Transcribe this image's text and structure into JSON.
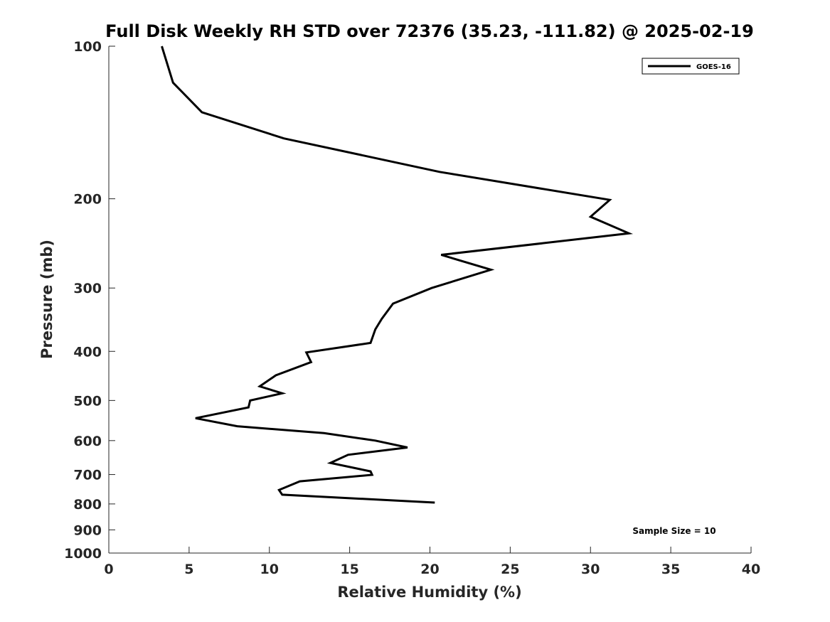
{
  "chart_data": {
    "type": "line",
    "title": "Full Disk Weekly RH STD over 72376 (35.23, -111.82) @ 2025-02-19",
    "xlabel": "Relative Humidity (%)",
    "ylabel": "Pressure (mb)",
    "xlim": [
      0,
      40
    ],
    "ylim": [
      100,
      1000
    ],
    "y_scale": "log",
    "y_reversed": true,
    "grid": false,
    "x_ticks": [
      0,
      5,
      10,
      15,
      20,
      25,
      30,
      35,
      40
    ],
    "y_ticks": [
      100,
      200,
      300,
      400,
      500,
      600,
      700,
      800,
      900,
      1000
    ],
    "legend": {
      "position": "top-right",
      "entries": [
        "GOES-16"
      ]
    },
    "annotations": [
      {
        "text": "Sample Size = 10",
        "position": "bottom-right"
      }
    ],
    "series": [
      {
        "name": "GOES-16",
        "color": "#000000",
        "points": [
          {
            "x": 3.3,
            "y": 100
          },
          {
            "x": 4.0,
            "y": 118
          },
          {
            "x": 5.8,
            "y": 135
          },
          {
            "x": 10.9,
            "y": 152
          },
          {
            "x": 20.6,
            "y": 177
          },
          {
            "x": 31.2,
            "y": 201
          },
          {
            "x": 30.0,
            "y": 217
          },
          {
            "x": 32.4,
            "y": 234
          },
          {
            "x": 20.7,
            "y": 258
          },
          {
            "x": 23.8,
            "y": 276
          },
          {
            "x": 20.1,
            "y": 300
          },
          {
            "x": 17.7,
            "y": 322
          },
          {
            "x": 17.0,
            "y": 345
          },
          {
            "x": 16.6,
            "y": 362
          },
          {
            "x": 16.3,
            "y": 385
          },
          {
            "x": 12.3,
            "y": 402
          },
          {
            "x": 12.6,
            "y": 420
          },
          {
            "x": 10.4,
            "y": 446
          },
          {
            "x": 9.4,
            "y": 469
          },
          {
            "x": 10.8,
            "y": 484
          },
          {
            "x": 8.8,
            "y": 500
          },
          {
            "x": 8.7,
            "y": 516
          },
          {
            "x": 5.4,
            "y": 542
          },
          {
            "x": 8.0,
            "y": 562
          },
          {
            "x": 13.4,
            "y": 580
          },
          {
            "x": 16.6,
            "y": 600
          },
          {
            "x": 18.6,
            "y": 619
          },
          {
            "x": 14.9,
            "y": 640
          },
          {
            "x": 13.8,
            "y": 664
          },
          {
            "x": 16.3,
            "y": 690
          },
          {
            "x": 16.4,
            "y": 701
          },
          {
            "x": 11.9,
            "y": 722
          },
          {
            "x": 10.6,
            "y": 751
          },
          {
            "x": 10.8,
            "y": 767
          },
          {
            "x": 20.3,
            "y": 795
          }
        ]
      }
    ]
  }
}
